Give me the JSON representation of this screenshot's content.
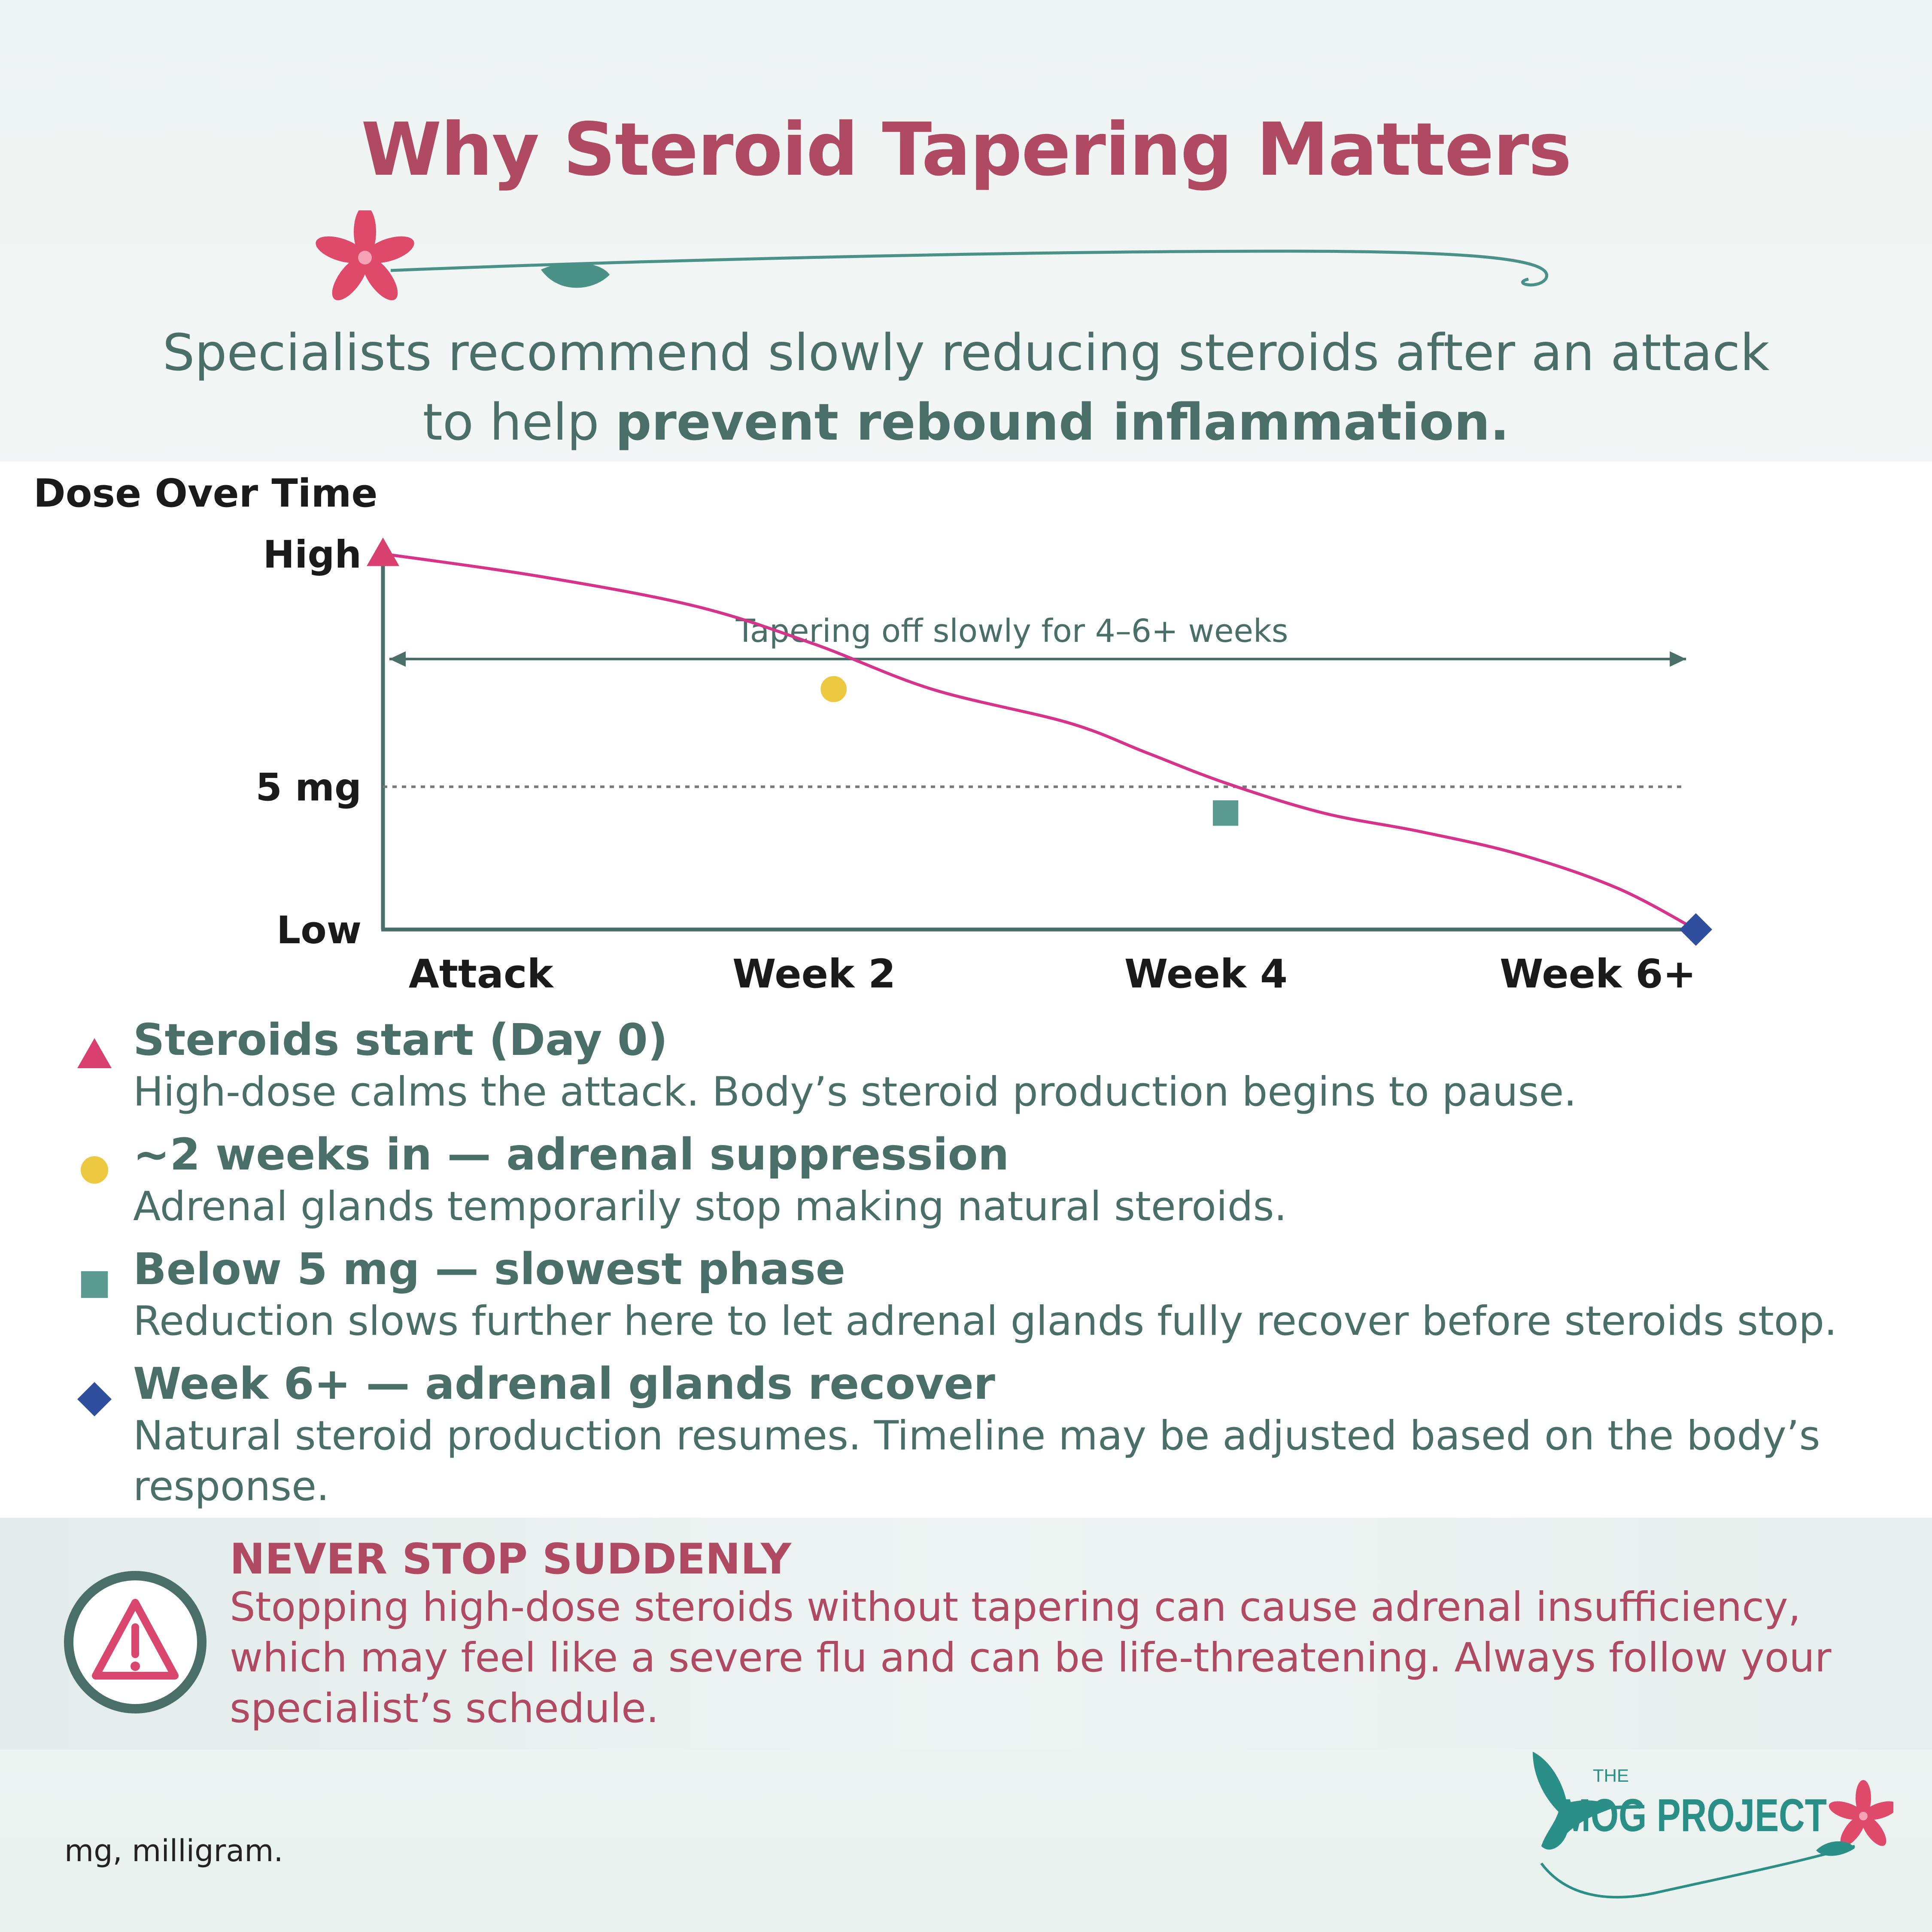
{
  "colors": {
    "title": "#b04a62",
    "teal_dark": "#4a6e68",
    "teal_logo": "#2a8f86",
    "curve": "#d6338a",
    "marker_start": "#d94070",
    "marker_week2": "#ecc940",
    "marker_week4": "#5b9a90",
    "marker_end": "#2f4f9e",
    "warning_text": "#b04a62"
  },
  "header": {
    "title": "Why Steroid Tapering Matters",
    "subtitle_line1": "Specialists recommend slowly reducing steroids after an attack",
    "subtitle_line2_prefix": "to help ",
    "subtitle_line2_bold": "prevent rebound inflammation."
  },
  "chart_data": {
    "type": "line",
    "title": "Dose Over Time",
    "x_ticks": [
      "Attack",
      "Week 2",
      "Week 4",
      "Week 6+"
    ],
    "x_tick_positions_weeks": [
      0.5,
      2.2,
      4.2,
      6.2
    ],
    "xlim": [
      0,
      6.7
    ],
    "y_tick_labels": [
      {
        "label": "High",
        "value": 100
      },
      {
        "label": "5 mg",
        "value": 38
      },
      {
        "label": "Low",
        "value": 0
      }
    ],
    "ylim": [
      0,
      100
    ],
    "reference_line": {
      "label": "5 mg",
      "value": 38,
      "style": "dotted"
    },
    "annotation": "Tapering off slowly for 4–6+ weeks",
    "annotation_range_weeks": [
      0,
      6.65
    ],
    "series": [
      {
        "points": [
          [
            0,
            100
          ],
          [
            0.8,
            94
          ],
          [
            1.6,
            86
          ],
          [
            2.2,
            76
          ],
          [
            2.8,
            64
          ],
          [
            3.5,
            55
          ],
          [
            3.9,
            47
          ],
          [
            4.3,
            39
          ],
          [
            4.8,
            31
          ],
          [
            5.3,
            26
          ],
          [
            5.8,
            20
          ],
          [
            6.3,
            11
          ],
          [
            6.7,
            0
          ]
        ]
      }
    ],
    "markers": [
      {
        "name": "Steroids start (Day 0)",
        "shape": "triangle",
        "x": 0,
        "y": 100,
        "color": "#d94070"
      },
      {
        "name": "~2 weeks in — adrenal suppression",
        "shape": "circle",
        "x": 2.3,
        "y": 64,
        "color": "#ecc940"
      },
      {
        "name": "Below 5 mg — slowest phase",
        "shape": "square",
        "x": 4.3,
        "y": 31,
        "color": "#5b9a90"
      },
      {
        "name": "Week 6+ — adrenal glands recover",
        "shape": "diamond",
        "x": 6.7,
        "y": 0,
        "color": "#2f4f9e"
      }
    ]
  },
  "legend": [
    {
      "shape": "triangle",
      "color": "#d94070",
      "heading": "Steroids start (Day 0)",
      "text": "High-dose calms the attack. Body’s steroid production begins to pause."
    },
    {
      "shape": "circle",
      "color": "#ecc940",
      "heading": "~2 weeks in — adrenal suppression",
      "text": "Adrenal glands temporarily stop making natural steroids."
    },
    {
      "shape": "square",
      "color": "#5b9a90",
      "heading": "Below 5 mg — slowest phase",
      "text": "Reduction slows further here to let adrenal glands fully recover before steroids stop."
    },
    {
      "shape": "diamond",
      "color": "#2f4f9e",
      "heading": "Week 6+ — adrenal glands recover",
      "text": "Natural steroid production resumes. Timeline may be adjusted based on the body’s response."
    }
  ],
  "warning": {
    "title": "NEVER STOP SUDDENLY",
    "text": "Stopping high-dose steroids without tapering can cause adrenal insufficiency, which may feel like a severe flu and can be life-threatening. Always follow your specialist’s schedule."
  },
  "footnote": "mg, milligram.",
  "logo": {
    "small": "THE",
    "main": "MOG PROJECT"
  }
}
